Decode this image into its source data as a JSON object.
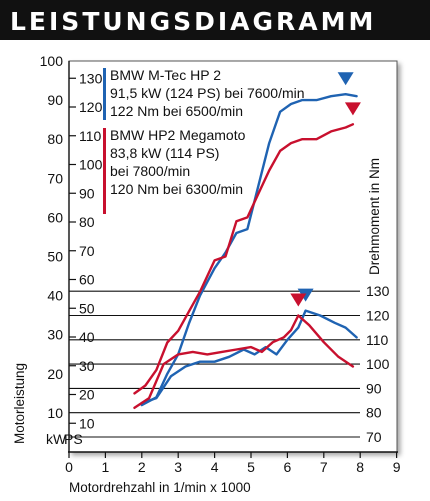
{
  "chart_data": {
    "type": "line",
    "title": "LEISTUNGSDIAGRAMM",
    "xlabel": "Motordrehzahl in 1/min x 1000",
    "ylabel_left": "Motorleistung",
    "ylabel_right": "Drehmoment in Nm",
    "unit_kw": "kW",
    "unit_ps": "PS",
    "xlim": [
      0,
      9
    ],
    "ylim_kw": [
      0,
      100
    ],
    "ylim_ps": [
      0,
      136
    ],
    "ylim_nm": [
      65,
      135
    ],
    "x_ticks": [
      "0",
      "1",
      "2",
      "3",
      "4",
      "5",
      "6",
      "7",
      "8",
      "9"
    ],
    "y_ticks_kw": [
      "10",
      "20",
      "30",
      "40",
      "50",
      "60",
      "70",
      "80",
      "90",
      "100"
    ],
    "y_ticks_ps": [
      "10",
      "20",
      "30",
      "40",
      "50",
      "60",
      "70",
      "80",
      "90",
      "100",
      "110",
      "120",
      "130"
    ],
    "y_ticks_nm": [
      "70",
      "80",
      "90",
      "100",
      "110",
      "120",
      "130"
    ],
    "colors": {
      "bmw": "#1f63b2",
      "hp2": "#c8102e",
      "frame": "#111111",
      "title_bg": "#111111"
    },
    "legend": [
      {
        "lines": [
          "BMW M-Tec HP 2",
          "91,5 kW (124 PS) bei 7600/min",
          "122 Nm bei 6500/min"
        ]
      },
      {
        "lines": [
          "BMW HP2 Megamoto",
          "83,8 kW (114 PS)",
          "bei 7800/min",
          "120 Nm bei 6300/min"
        ]
      }
    ],
    "series": [
      {
        "name": "BMW M-Tec HP 2",
        "kind": "power",
        "axis": "kw",
        "x": [
          2.0,
          2.4,
          2.7,
          3.0,
          3.3,
          3.6,
          4.0,
          4.3,
          4.6,
          4.9,
          5.2,
          5.5,
          5.8,
          6.1,
          6.4,
          6.8,
          7.2,
          7.6,
          7.9
        ],
        "y": [
          12,
          14,
          20,
          25,
          33,
          40,
          47,
          51,
          56,
          57,
          68,
          79,
          87,
          89,
          90,
          90,
          91,
          91.5,
          91
        ]
      },
      {
        "name": "BMW HP2 Megamoto",
        "kind": "power",
        "axis": "kw",
        "x": [
          1.8,
          2.1,
          2.4,
          2.7,
          3.0,
          3.3,
          3.6,
          4.0,
          4.3,
          4.6,
          4.9,
          5.2,
          5.5,
          5.8,
          6.1,
          6.4,
          6.8,
          7.2,
          7.6,
          7.8
        ],
        "y": [
          15,
          17,
          21,
          28,
          31,
          36,
          41,
          49,
          50,
          59,
          60,
          66,
          72,
          77,
          79,
          80,
          80,
          82,
          83,
          83.8
        ]
      },
      {
        "name": "BMW M-Tec HP 2",
        "kind": "torque",
        "axis": "nm",
        "x": [
          2.0,
          2.4,
          2.8,
          3.2,
          3.6,
          4.0,
          4.4,
          4.8,
          5.1,
          5.4,
          5.7,
          6.0,
          6.3,
          6.5,
          6.9,
          7.3,
          7.6,
          7.9
        ],
        "y": [
          84,
          86,
          95,
          99,
          101,
          101,
          103,
          106,
          104,
          107,
          104,
          110,
          115,
          122,
          120,
          117,
          115,
          111
        ]
      },
      {
        "name": "BMW HP2 Megamoto",
        "kind": "torque",
        "axis": "nm",
        "x": [
          1.8,
          2.2,
          2.6,
          3.0,
          3.4,
          3.8,
          4.2,
          4.6,
          5.0,
          5.3,
          5.6,
          5.9,
          6.1,
          6.3,
          6.6,
          7.0,
          7.4,
          7.8
        ],
        "y": [
          82,
          86,
          100,
          104,
          105,
          104,
          105,
          106,
          107,
          105,
          109,
          111,
          114,
          120,
          116,
          109,
          103,
          99
        ]
      }
    ],
    "markers": [
      {
        "color": "bmw",
        "x": 7.6,
        "y": 91.5,
        "axis": "kw"
      },
      {
        "color": "hp2",
        "x": 7.8,
        "y": 83.8,
        "axis": "kw"
      },
      {
        "color": "bmw",
        "x": 6.5,
        "y": 122,
        "axis": "nm"
      },
      {
        "color": "hp2",
        "x": 6.3,
        "y": 120,
        "axis": "nm"
      }
    ]
  }
}
